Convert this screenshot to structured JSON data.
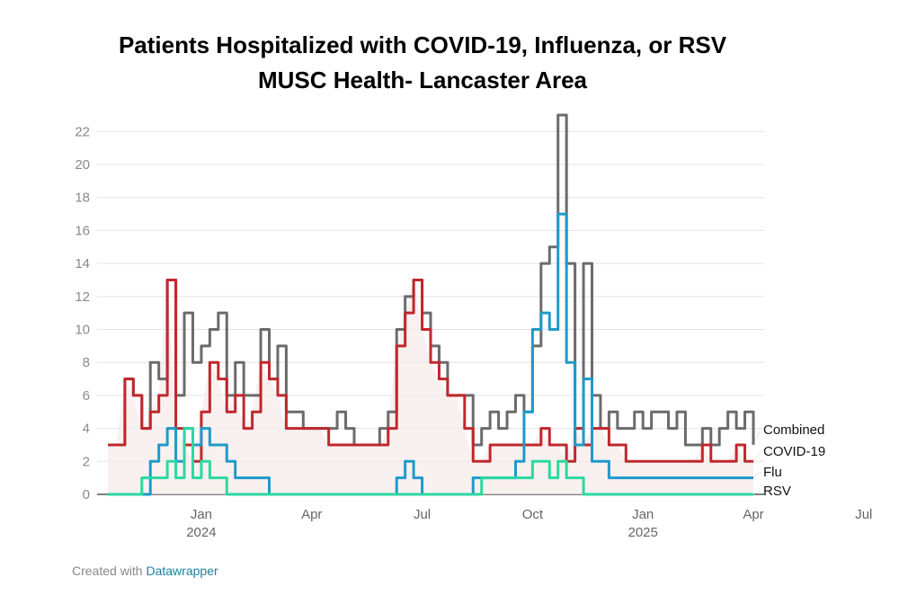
{
  "header": {
    "title_line1": "Patients Hospitalized with COVID-19, Influenza, or RSV",
    "title_line2": "MUSC Health- Lancaster Area"
  },
  "footer": {
    "credit_prefix": "Created with",
    "credit_link": "Datawrapper"
  },
  "chart_data": {
    "type": "line",
    "y_ticks": [
      "0",
      "2",
      "4",
      "6",
      "8",
      "10",
      "12",
      "14",
      "16",
      "18",
      "20",
      "22"
    ],
    "ylim": [
      0,
      23
    ],
    "x_ticks": [
      {
        "label": "Jan",
        "sub": "2024",
        "week": 11
      },
      {
        "label": "Apr",
        "sub": "",
        "week": 24
      },
      {
        "label": "Jul",
        "sub": "",
        "week": 37
      },
      {
        "label": "Oct",
        "sub": "",
        "week": 50
      },
      {
        "label": "Jan",
        "sub": "2025",
        "week": 63
      },
      {
        "label": "Apr",
        "sub": "",
        "week": 76
      },
      {
        "label": "Jul",
        "sub": "",
        "week": 89
      }
    ],
    "grid": true,
    "legend_placement": "right-end-labels",
    "series": [
      {
        "name": "Combined",
        "color": "#6b6b6b",
        "values": [
          3,
          3,
          7,
          6,
          4,
          8,
          7,
          13,
          6,
          11,
          8,
          9,
          10,
          11,
          6,
          8,
          6,
          6,
          10,
          7,
          9,
          5,
          5,
          4,
          4,
          4,
          4,
          5,
          4,
          3,
          3,
          3,
          4,
          5,
          10,
          12,
          13,
          11,
          9,
          8,
          6,
          6,
          6,
          3,
          4,
          5,
          4,
          5,
          6,
          5,
          9,
          14,
          15,
          23,
          14,
          4,
          14,
          6,
          4,
          5,
          4,
          4,
          5,
          4,
          5,
          5,
          4,
          5,
          3,
          3,
          4,
          3,
          4,
          5,
          4,
          5,
          3
        ]
      },
      {
        "name": "COVID-19",
        "color": "#c0282d",
        "values": [
          3,
          3,
          7,
          6,
          4,
          5,
          6,
          13,
          4,
          3,
          2,
          5,
          8,
          7,
          5,
          6,
          4,
          5,
          8,
          7,
          6,
          4,
          4,
          4,
          4,
          4,
          3,
          3,
          3,
          3,
          3,
          3,
          3,
          4,
          9,
          11,
          13,
          10,
          8,
          7,
          6,
          6,
          4,
          2,
          2,
          3,
          3,
          3,
          3,
          3,
          3,
          4,
          3,
          3,
          2,
          4,
          3,
          4,
          4,
          3,
          3,
          2,
          2,
          2,
          2,
          2,
          2,
          2,
          2,
          2,
          3,
          2,
          2,
          2,
          3,
          2,
          2
        ]
      },
      {
        "name": "Flu",
        "color": "#1f9ac9",
        "values": [
          0,
          0,
          0,
          0,
          0,
          2,
          3,
          4,
          2,
          4,
          3,
          4,
          3,
          3,
          2,
          1,
          1,
          1,
          1,
          0,
          0,
          0,
          0,
          0,
          0,
          0,
          0,
          0,
          0,
          0,
          0,
          0,
          0,
          0,
          1,
          2,
          1,
          0,
          0,
          0,
          0,
          0,
          0,
          1,
          1,
          1,
          1,
          1,
          2,
          5,
          10,
          11,
          10,
          17,
          8,
          3,
          7,
          2,
          2,
          1,
          1,
          1,
          1,
          1,
          1,
          1,
          1,
          1,
          1,
          1,
          1,
          1,
          1,
          1,
          1,
          1,
          1
        ]
      },
      {
        "name": "RSV",
        "color": "#2bd9a1",
        "values": [
          0,
          0,
          0,
          0,
          1,
          1,
          1,
          2,
          1,
          4,
          1,
          2,
          1,
          1,
          0,
          0,
          0,
          0,
          0,
          0,
          0,
          0,
          0,
          0,
          0,
          0,
          0,
          0,
          0,
          0,
          0,
          0,
          0,
          0,
          0,
          0,
          0,
          0,
          0,
          0,
          0,
          0,
          0,
          0,
          1,
          1,
          1,
          1,
          1,
          1,
          2,
          2,
          1,
          2,
          1,
          1,
          0,
          0,
          0,
          0,
          0,
          0,
          0,
          0,
          0,
          0,
          0,
          0,
          0,
          0,
          0,
          0,
          0,
          0,
          0,
          0,
          0
        ]
      }
    ]
  }
}
